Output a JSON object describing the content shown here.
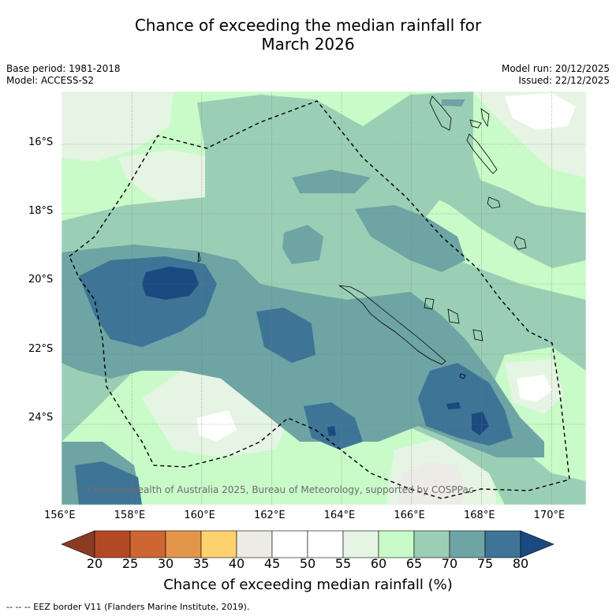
{
  "title_line1": "Chance of exceeding the median rainfall for",
  "title_line2": "March 2026",
  "base_period": "Base period: 1981-2018",
  "model": "Model: ACCESS-S2",
  "model_run": "Model run: 20/12/2025",
  "issued": "Issued: 22/12/2025",
  "copyright": "© Commonwealth of Australia 2025, Bureau of Meteorology, supported by COSPPac",
  "eez_note": "--  --  -- EEZ border V11 (Flanders Marine Institute, 2019).",
  "map_extent": {
    "lon_min": 156,
    "lon_max": 171,
    "lat_min": -26.5,
    "lat_max": -14.5
  },
  "lat_ticks": [
    {
      "value": -16,
      "label": "16°S"
    },
    {
      "value": -18,
      "label": "18°S"
    },
    {
      "value": -20,
      "label": "20°S"
    },
    {
      "value": -22,
      "label": "22°S"
    },
    {
      "value": -24,
      "label": "24°S"
    }
  ],
  "lon_ticks": [
    {
      "value": 156,
      "label": "156°E"
    },
    {
      "value": 158,
      "label": "158°E"
    },
    {
      "value": 160,
      "label": "160°E"
    },
    {
      "value": 162,
      "label": "162°E"
    },
    {
      "value": 164,
      "label": "164°E"
    },
    {
      "value": 166,
      "label": "166°E"
    },
    {
      "value": 168,
      "label": "168°E"
    },
    {
      "value": 170,
      "label": "170°E"
    }
  ],
  "colorbar": {
    "title": "Chance of exceeding median rainfall (%)",
    "labels": [
      "20",
      "25",
      "30",
      "35",
      "40",
      "45",
      "50",
      "55",
      "60",
      "65",
      "70",
      "75",
      "80"
    ],
    "below_color": "#8b3a24",
    "above_color": "#1a4a80",
    "bins": [
      {
        "range": "20-25",
        "color": "#b34a25"
      },
      {
        "range": "25-30",
        "color": "#cd6630"
      },
      {
        "range": "30-35",
        "color": "#e3954a"
      },
      {
        "range": "35-40",
        "color": "#fdd26e"
      },
      {
        "range": "40-45",
        "color": "#ecebe5"
      },
      {
        "range": "45-50",
        "color": "#ffffff"
      },
      {
        "range": "50-55",
        "color": "#ffffff"
      },
      {
        "range": "55-60",
        "color": "#e6f4e4"
      },
      {
        "range": "60-65",
        "color": "#c9fbc9"
      },
      {
        "range": "65-70",
        "color": "#9bcfb5"
      },
      {
        "range": "70-75",
        "color": "#6ea4a4"
      },
      {
        "range": "75-80",
        "color": "#3e7496"
      }
    ]
  },
  "regions": [
    {
      "name": "moderate-wetter-zone",
      "class": "65-70",
      "color": "#9bcfb5"
    },
    {
      "name": "likely-wetter-west",
      "class": "70-75",
      "color": "#6ea4a4"
    },
    {
      "name": "very-likely-wetter-west",
      "class": "75-80",
      "color": "#3e7496"
    },
    {
      "name": "very-likely-wetter-core",
      "class": ">80",
      "color": "#1a4a80"
    },
    {
      "name": "near-median-south",
      "class": "40-45",
      "color": "#ecebe5"
    },
    {
      "name": "slightly-wetter-zone",
      "class": "60-65",
      "color": "#c9fbc9"
    }
  ]
}
